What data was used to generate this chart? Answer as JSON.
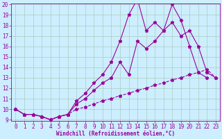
{
  "xlabel": "Windchill (Refroidissement éolien,°C)",
  "x_values": [
    0,
    1,
    2,
    3,
    4,
    5,
    6,
    7,
    8,
    9,
    10,
    11,
    12,
    13,
    14,
    15,
    16,
    17,
    18,
    19,
    20,
    21,
    22,
    23
  ],
  "line1": [
    10.0,
    9.5,
    9.5,
    9.3,
    9.0,
    9.3,
    9.5,
    10.8,
    11.5,
    12.5,
    13.3,
    14.5,
    16.5,
    19.0,
    20.5,
    17.5,
    18.3,
    17.5,
    20.0,
    18.5,
    16.0,
    13.5,
    13.0,
    null
  ],
  "line2": [
    10.0,
    9.5,
    9.5,
    9.3,
    9.0,
    9.3,
    9.5,
    10.5,
    11.0,
    11.8,
    12.5,
    13.0,
    14.5,
    13.3,
    16.5,
    15.8,
    16.5,
    17.5,
    18.3,
    17.0,
    17.5,
    16.0,
    13.5,
    13.0
  ],
  "line3_dashed": [
    10.0,
    9.5,
    9.5,
    9.3,
    9.0,
    9.3,
    9.5,
    10.0,
    10.2,
    10.5,
    10.8,
    11.0,
    11.3,
    11.5,
    11.8,
    12.0,
    12.3,
    12.5,
    12.8,
    13.0,
    13.3,
    13.5,
    13.8,
    13.0
  ],
  "line_color": "#990099",
  "bg_color": "#cceeff",
  "grid_color": "#aaccbb",
  "ylim": [
    9,
    20
  ],
  "xlim": [
    -0.5,
    23.5
  ],
  "yticks": [
    9,
    10,
    11,
    12,
    13,
    14,
    15,
    16,
    17,
    18,
    19,
    20
  ],
  "xticks": [
    0,
    1,
    2,
    3,
    4,
    5,
    6,
    7,
    8,
    9,
    10,
    11,
    12,
    13,
    14,
    15,
    16,
    17,
    18,
    19,
    20,
    21,
    22,
    23
  ],
  "markersize": 2.0,
  "linewidth": 0.8,
  "tick_fontsize": 5.5,
  "xlabel_fontsize": 5.5
}
